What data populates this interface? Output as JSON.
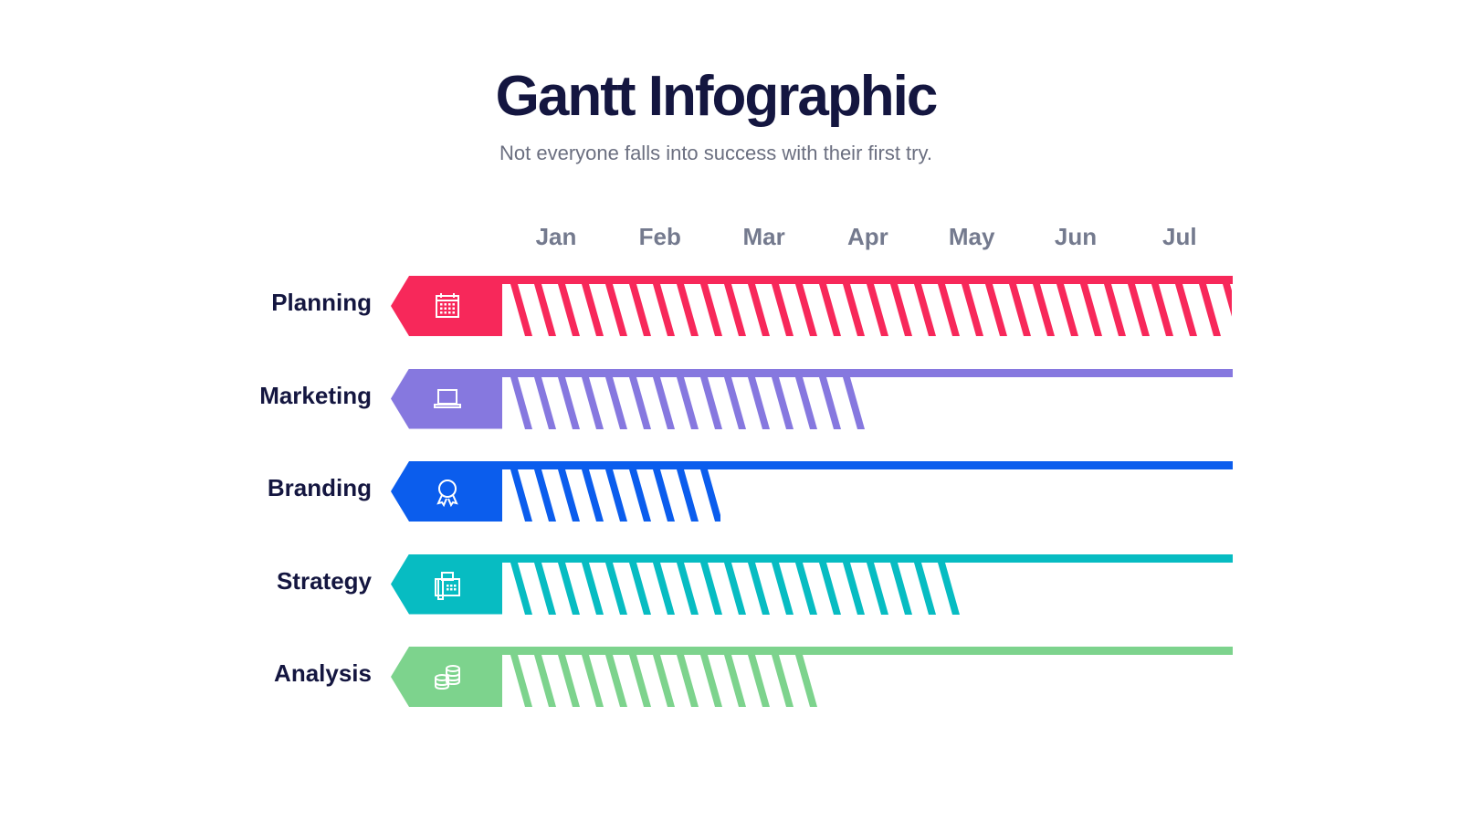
{
  "title": "Gantt Infographic",
  "subtitle": "Not everyone falls into success with their first try.",
  "months": [
    "Jan",
    "Feb",
    "Mar",
    "Apr",
    "May",
    "Jun",
    "Jul"
  ],
  "tasks": [
    {
      "label": "Planning",
      "icon": "calendar-icon",
      "color": "#f7285a",
      "progress": 1.0
    },
    {
      "label": "Marketing",
      "icon": "laptop-icon",
      "color": "#8678df",
      "progress": 0.5
    },
    {
      "label": "Branding",
      "icon": "award-ribbon-icon",
      "color": "#0b5ded",
      "progress": 0.3
    },
    {
      "label": "Strategy",
      "icon": "fax-phone-icon",
      "color": "#07bcc2",
      "progress": 0.63
    },
    {
      "label": "Analysis",
      "icon": "coins-icon",
      "color": "#7dd38d",
      "progress": 0.44
    }
  ]
}
